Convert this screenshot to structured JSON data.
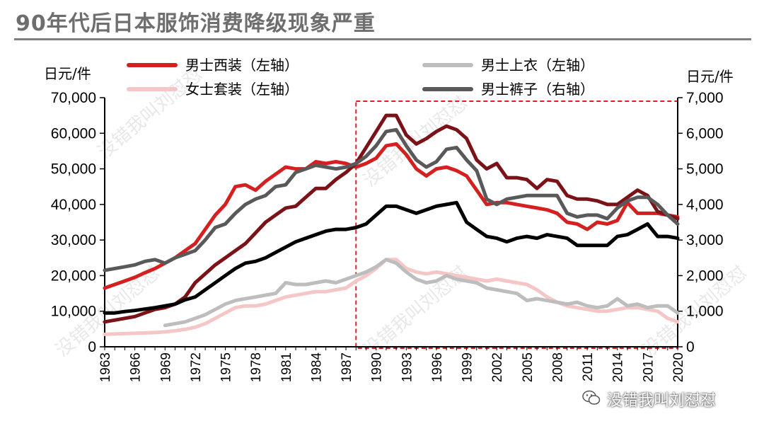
{
  "page": {
    "title": "90年代后日本服饰消费降级现象严重",
    "watermark": "没错我叫刘怼怼",
    "footer_brand": "没错我叫刘怼怼"
  },
  "chart_data": {
    "type": "line",
    "title": "90年代后日本服饰消费降级现象严重",
    "ylabel_left": "日元/件",
    "ylabel_right": "日元/件",
    "ylim_left": [
      0,
      70000
    ],
    "ylim_right": [
      0,
      7000
    ],
    "yticks_left": [
      "0",
      "10,000",
      "20,000",
      "30,000",
      "40,000",
      "50,000",
      "60,000",
      "70,000"
    ],
    "yticks_right": [
      "0",
      "1,000",
      "2,000",
      "3,000",
      "4,000",
      "5,000",
      "6,000",
      "7,000"
    ],
    "x": [
      1963,
      1964,
      1965,
      1966,
      1967,
      1968,
      1969,
      1970,
      1971,
      1972,
      1973,
      1974,
      1975,
      1976,
      1977,
      1978,
      1979,
      1980,
      1981,
      1982,
      1983,
      1984,
      1985,
      1986,
      1987,
      1988,
      1989,
      1990,
      1991,
      1992,
      1993,
      1994,
      1995,
      1996,
      1997,
      1998,
      1999,
      2000,
      2001,
      2002,
      2003,
      2004,
      2005,
      2006,
      2007,
      2008,
      2009,
      2010,
      2011,
      2012,
      2013,
      2014,
      2015,
      2016,
      2017,
      2018,
      2019,
      2020
    ],
    "xtick_labels": [
      "1963",
      "1966",
      "1969",
      "1972",
      "1975",
      "1978",
      "1981",
      "1984",
      "1987",
      "1990",
      "1993",
      "1996",
      "1999",
      "2002",
      "2005",
      "2008",
      "2011",
      "2014",
      "2017",
      "2020"
    ],
    "legend_position": "top",
    "highlight_range": [
      1988,
      2020
    ],
    "series": [
      {
        "name": "男士西装（左轴）",
        "axis": "left",
        "color": "#d42020",
        "width": 5,
        "values": [
          16500,
          17500,
          18500,
          19500,
          20800,
          22000,
          23500,
          25000,
          27000,
          29000,
          33000,
          37000,
          40000,
          45000,
          45500,
          44000,
          46500,
          48500,
          50500,
          50000,
          50000,
          52000,
          51500,
          52000,
          51500,
          50500,
          51500,
          53000,
          56500,
          57000,
          54000,
          50000,
          48000,
          50000,
          50500,
          49500,
          48000,
          44000,
          40000,
          40500,
          40500,
          40000,
          39500,
          39000,
          38500,
          37500,
          35000,
          34500,
          33000,
          35000,
          34500,
          35500,
          40500,
          37500,
          37500,
          37500,
          37000,
          36500
        ]
      },
      {
        "name": "女士套装（左轴）",
        "axis": "left",
        "color": "#f5c6c6",
        "width": 5,
        "values": [
          3500,
          3600,
          3700,
          3800,
          3900,
          4000,
          4200,
          4500,
          4900,
          5500,
          6500,
          8000,
          9500,
          11000,
          11500,
          11500,
          12000,
          13000,
          14000,
          14500,
          15000,
          15500,
          15500,
          16000,
          16500,
          18500,
          20000,
          22000,
          24500,
          24500,
          22000,
          21000,
          20500,
          21000,
          20500,
          20000,
          19500,
          19000,
          18500,
          19000,
          18500,
          18000,
          17500,
          16000,
          14000,
          12500,
          11500,
          11000,
          10500,
          10000,
          10000,
          10500,
          11000,
          11000,
          10500,
          10000,
          8000,
          7000
        ]
      },
      {
        "name": "男士上衣（左轴）",
        "axis": "left",
        "color": "#bdbdbd",
        "width": 5,
        "values": [
          null,
          null,
          null,
          null,
          null,
          null,
          6000,
          6500,
          7000,
          8000,
          9000,
          10500,
          12000,
          13000,
          13500,
          14000,
          14500,
          15000,
          18000,
          17500,
          17500,
          18000,
          18500,
          18000,
          19000,
          20000,
          21000,
          22500,
          24500,
          23500,
          21000,
          19000,
          18000,
          18500,
          20000,
          19000,
          18500,
          18000,
          16500,
          16000,
          15500,
          15000,
          13000,
          13500,
          13000,
          12500,
          12000,
          12500,
          11500,
          11000,
          11500,
          13500,
          11500,
          12000,
          11000,
          11500,
          11500,
          9500
        ]
      },
      {
        "name": "",
        "axis": "left",
        "color": "#7b1218",
        "width": 5,
        "values": [
          7000,
          7500,
          8000,
          8500,
          9500,
          10500,
          11000,
          12000,
          14000,
          18000,
          20500,
          23000,
          25000,
          27000,
          29000,
          32000,
          35000,
          37000,
          39000,
          39500,
          42000,
          44500,
          44500,
          47000,
          49000,
          51500,
          56000,
          60500,
          65000,
          65000,
          59500,
          57000,
          58500,
          60500,
          62000,
          61000,
          58500,
          52500,
          50000,
          51500,
          47500,
          47500,
          47000,
          44500,
          47000,
          46500,
          42500,
          41500,
          41500,
          41000,
          40000,
          40000,
          42000,
          44000,
          42500,
          38000,
          37000,
          36000
        ]
      },
      {
        "name": "",
        "axis": "right",
        "color": "#000000",
        "width": 5,
        "values": [
          950,
          950,
          990,
          1020,
          1060,
          1100,
          1150,
          1200,
          1320,
          1400,
          1600,
          1800,
          2000,
          2200,
          2350,
          2400,
          2500,
          2650,
          2800,
          2950,
          3050,
          3150,
          3250,
          3300,
          3300,
          3350,
          3450,
          3700,
          3950,
          3950,
          3850,
          3750,
          3850,
          3950,
          4000,
          4050,
          3500,
          3300,
          3100,
          3050,
          2950,
          3050,
          3100,
          3050,
          3150,
          3100,
          3050,
          2850,
          2850,
          2850,
          2850,
          3100,
          3150,
          3300,
          3450,
          3100,
          3100,
          3050
        ]
      },
      {
        "name": "男士裤子（右轴）",
        "axis": "right",
        "color": "#595959",
        "width": 5,
        "values": [
          2150,
          2200,
          2250,
          2300,
          2400,
          2450,
          2350,
          2500,
          2600,
          2700,
          3000,
          3350,
          3450,
          3750,
          4000,
          4150,
          4250,
          4500,
          4550,
          4900,
          5000,
          5100,
          5050,
          5000,
          5050,
          5150,
          5350,
          5650,
          6050,
          6100,
          5650,
          5250,
          5050,
          5200,
          5550,
          5600,
          5250,
          4950,
          4150,
          4000,
          4150,
          4200,
          4250,
          4250,
          4250,
          4250,
          3750,
          3650,
          3700,
          3700,
          3600,
          3900,
          4100,
          4200,
          4200,
          4000,
          3700,
          3450
        ]
      }
    ],
    "legend": [
      {
        "label": "男士西装（左轴）",
        "color": "#d42020"
      },
      {
        "label": "男士上衣（左轴）",
        "color": "#bdbdbd"
      },
      {
        "label": "女士套装（左轴）",
        "color": "#f5c6c6"
      },
      {
        "label": "男士裤子（右轴）",
        "color": "#595959"
      }
    ]
  }
}
